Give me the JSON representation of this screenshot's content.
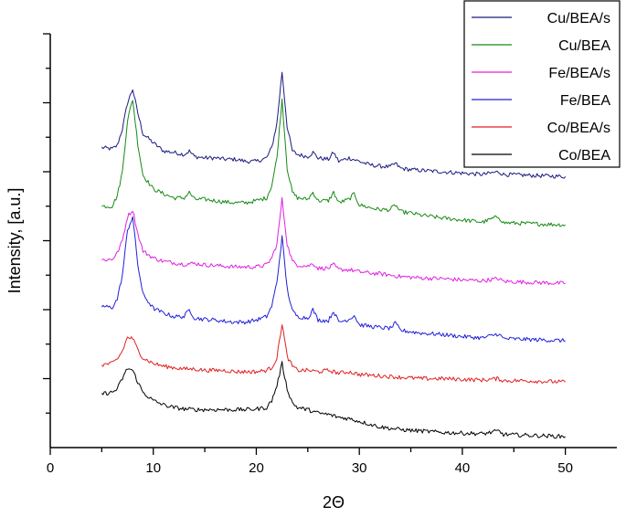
{
  "chart_data": {
    "type": "line",
    "xlabel": "2Θ",
    "ylabel": "Intensity, [a.u.]",
    "xlim": [
      0,
      55
    ],
    "ylim": [
      0,
      6.0
    ],
    "x_ticks": [
      0,
      10,
      20,
      30,
      40,
      50
    ],
    "x_tick_labels": [
      "0",
      "10",
      "20",
      "30",
      "40",
      "50"
    ],
    "y_tick_labels_shown": false,
    "grid": false,
    "legend_position": "top-right",
    "series": [
      {
        "name": "Cu/BEA/s",
        "color": "#1a1a80",
        "x": [
          5,
          6,
          6.5,
          7,
          7.5,
          8,
          8.5,
          9,
          10,
          11,
          12,
          13,
          13.5,
          14,
          15,
          16,
          17,
          18,
          19,
          20,
          21,
          21.5,
          22,
          22.5,
          23,
          23.5,
          24,
          25,
          25.5,
          26,
          27,
          27.5,
          28,
          29,
          30,
          31,
          32,
          33,
          33.5,
          34,
          35,
          36,
          38,
          40,
          42,
          43.5,
          44,
          46,
          48,
          50
        ],
        "y": [
          4.35,
          4.33,
          4.38,
          4.62,
          5.0,
          5.2,
          4.85,
          4.55,
          4.42,
          4.3,
          4.28,
          4.25,
          4.3,
          4.22,
          4.2,
          4.2,
          4.18,
          4.18,
          4.15,
          4.15,
          4.2,
          4.35,
          4.7,
          5.45,
          4.65,
          4.3,
          4.25,
          4.22,
          4.28,
          4.2,
          4.18,
          4.28,
          4.15,
          4.2,
          4.15,
          4.1,
          4.08,
          4.07,
          4.12,
          4.05,
          4.03,
          4.02,
          4.0,
          3.98,
          3.96,
          4.0,
          3.96,
          3.95,
          3.94,
          3.93
        ]
      },
      {
        "name": "Cu/BEA",
        "color": "#168a16",
        "x": [
          5,
          6,
          6.5,
          7,
          7.5,
          8,
          8.5,
          9,
          10,
          11,
          12,
          13,
          13.5,
          14,
          15,
          16,
          17,
          18,
          19,
          20,
          21,
          21.5,
          22,
          22.5,
          23,
          23.5,
          24,
          25,
          25.5,
          26,
          27,
          27.5,
          28,
          29,
          29.5,
          30,
          31,
          32,
          33,
          33.5,
          34,
          35,
          36,
          38,
          40,
          42,
          43.5,
          44,
          46,
          48,
          50
        ],
        "y": [
          3.5,
          3.5,
          3.65,
          4.0,
          4.75,
          5.05,
          4.4,
          3.95,
          3.75,
          3.68,
          3.62,
          3.62,
          3.7,
          3.6,
          3.6,
          3.58,
          3.56,
          3.55,
          3.55,
          3.58,
          3.62,
          3.8,
          4.2,
          5.05,
          4.05,
          3.7,
          3.62,
          3.6,
          3.7,
          3.58,
          3.58,
          3.7,
          3.55,
          3.6,
          3.68,
          3.52,
          3.48,
          3.45,
          3.45,
          3.52,
          3.42,
          3.4,
          3.37,
          3.33,
          3.3,
          3.27,
          3.35,
          3.26,
          3.25,
          3.24,
          3.23
        ]
      },
      {
        "name": "Fe/BEA/s",
        "color": "#e020e0",
        "x": [
          5,
          6,
          6.5,
          7,
          7.5,
          8,
          8.5,
          9,
          10,
          11,
          12,
          13,
          14,
          15,
          16,
          17,
          18,
          19,
          20,
          21,
          21.5,
          22,
          22.5,
          23,
          23.5,
          24,
          25,
          25.5,
          26,
          27,
          27.5,
          28,
          29,
          30,
          31,
          32,
          33,
          34,
          36,
          38,
          40,
          42,
          43.5,
          44,
          46,
          48,
          50
        ],
        "y": [
          2.72,
          2.73,
          2.82,
          3.0,
          3.35,
          3.45,
          3.1,
          2.85,
          2.75,
          2.7,
          2.68,
          2.66,
          2.67,
          2.65,
          2.64,
          2.63,
          2.62,
          2.62,
          2.62,
          2.65,
          2.75,
          2.95,
          3.6,
          2.95,
          2.7,
          2.65,
          2.63,
          2.67,
          2.6,
          2.6,
          2.65,
          2.58,
          2.58,
          2.55,
          2.53,
          2.52,
          2.5,
          2.48,
          2.46,
          2.45,
          2.43,
          2.42,
          2.45,
          2.41,
          2.4,
          2.39,
          2.38
        ]
      },
      {
        "name": "Fe/BEA",
        "color": "#2020d8",
        "x": [
          5,
          6,
          6.5,
          7,
          7.5,
          8,
          8.5,
          9,
          10,
          11,
          12,
          13,
          13.5,
          14,
          15,
          16,
          17,
          18,
          19,
          20,
          21,
          21.5,
          22,
          22.5,
          23,
          23.5,
          24,
          25,
          25.5,
          26,
          27,
          27.5,
          28,
          29,
          29.5,
          30,
          31,
          32,
          33,
          33.5,
          34,
          35,
          36,
          38,
          40,
          42,
          43.5,
          44,
          46,
          48,
          50
        ],
        "y": [
          2.05,
          2.03,
          2.15,
          2.5,
          3.15,
          3.35,
          2.65,
          2.22,
          2.02,
          1.95,
          1.9,
          1.9,
          2.0,
          1.88,
          1.86,
          1.85,
          1.83,
          1.82,
          1.82,
          1.85,
          1.9,
          2.05,
          2.4,
          3.05,
          2.3,
          1.98,
          1.9,
          1.88,
          2.0,
          1.85,
          1.84,
          1.98,
          1.82,
          1.86,
          1.92,
          1.78,
          1.76,
          1.74,
          1.73,
          1.8,
          1.7,
          1.68,
          1.66,
          1.64,
          1.61,
          1.59,
          1.65,
          1.58,
          1.57,
          1.56,
          1.55
        ]
      },
      {
        "name": "Co/BEA/s",
        "color": "#e02020",
        "x": [
          5,
          6,
          6.5,
          7,
          7.5,
          8,
          8.5,
          9,
          10,
          11,
          12,
          13,
          14,
          15,
          16,
          17,
          18,
          19,
          20,
          21,
          21.5,
          22,
          22.5,
          23,
          23.5,
          24,
          25,
          26,
          27,
          28,
          29,
          30,
          32,
          34,
          36,
          38,
          40,
          42,
          43.5,
          44,
          46,
          48,
          50
        ],
        "y": [
          1.2,
          1.22,
          1.28,
          1.4,
          1.6,
          1.58,
          1.42,
          1.3,
          1.22,
          1.18,
          1.16,
          1.14,
          1.14,
          1.12,
          1.12,
          1.12,
          1.1,
          1.1,
          1.1,
          1.12,
          1.16,
          1.3,
          1.8,
          1.32,
          1.18,
          1.12,
          1.12,
          1.1,
          1.12,
          1.08,
          1.1,
          1.06,
          1.04,
          1.02,
          1.0,
          1.0,
          0.99,
          0.98,
          1.0,
          0.97,
          0.97,
          0.96,
          0.95
        ]
      },
      {
        "name": "Co/BEA",
        "color": "#000000",
        "x": [
          5,
          6,
          6.5,
          7,
          7.5,
          8,
          8.5,
          9,
          10,
          11,
          12,
          13,
          14,
          15,
          16,
          17,
          18,
          19,
          20,
          21,
          21.5,
          22,
          22.5,
          23,
          23.5,
          24,
          25,
          26,
          27,
          28,
          29,
          30,
          31,
          32,
          34,
          36,
          38,
          40,
          42,
          43.5,
          44,
          46,
          48,
          50
        ],
        "y": [
          0.78,
          0.8,
          0.85,
          1.0,
          1.15,
          1.12,
          0.95,
          0.8,
          0.68,
          0.62,
          0.58,
          0.56,
          0.55,
          0.55,
          0.55,
          0.55,
          0.55,
          0.55,
          0.56,
          0.58,
          0.68,
          0.9,
          1.22,
          0.85,
          0.65,
          0.58,
          0.55,
          0.5,
          0.48,
          0.44,
          0.42,
          0.38,
          0.34,
          0.3,
          0.26,
          0.24,
          0.22,
          0.21,
          0.2,
          0.24,
          0.19,
          0.18,
          0.17,
          0.16
        ]
      }
    ]
  }
}
